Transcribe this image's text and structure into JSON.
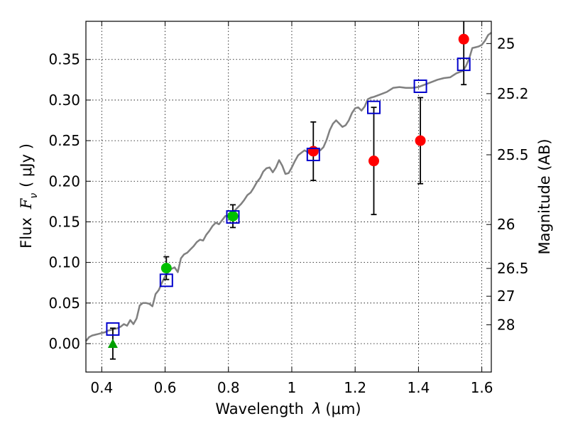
{
  "chart_data": {
    "type": "scatter",
    "xlabel_prefix": "Wavelength",
    "xlabel_symbol": "λ",
    "xlabel_unit": "(μm)",
    "ylabel_prefix": "Flux",
    "ylabel_symbol": "F",
    "ylabel_subscript": "ν",
    "ylabel_unit": "( μJy )",
    "y2label": "Magnitude (AB)",
    "xlim": [
      0.35,
      1.63
    ],
    "ylim": [
      -0.035,
      0.397
    ],
    "grid": true,
    "x_ticks": [
      {
        "value": 0.4,
        "label": "0.4"
      },
      {
        "value": 0.6,
        "label": "0.6"
      },
      {
        "value": 0.8,
        "label": "0.8"
      },
      {
        "value": 1.0,
        "label": "1"
      },
      {
        "value": 1.2,
        "label": "1.2"
      },
      {
        "value": 1.4,
        "label": "1.4"
      },
      {
        "value": 1.6,
        "label": "1.6"
      }
    ],
    "y_ticks": [
      {
        "value": 0.0,
        "label": "0.00"
      },
      {
        "value": 0.05,
        "label": "0.05"
      },
      {
        "value": 0.1,
        "label": "0.10"
      },
      {
        "value": 0.15,
        "label": "0.15"
      },
      {
        "value": 0.2,
        "label": "0.20"
      },
      {
        "value": 0.25,
        "label": "0.25"
      },
      {
        "value": 0.3,
        "label": "0.30"
      },
      {
        "value": 0.35,
        "label": "0.35"
      }
    ],
    "y2_ticks": [
      {
        "flux": 0.3696,
        "label": "25"
      },
      {
        "flux": 0.3079,
        "label": "25.2"
      },
      {
        "flux": 0.2326,
        "label": "25.5"
      },
      {
        "flux": 0.1467,
        "label": "26"
      },
      {
        "flux": 0.0926,
        "label": "26.5"
      },
      {
        "flux": 0.0584,
        "label": "27"
      },
      {
        "flux": 0.0232,
        "label": "28"
      }
    ],
    "model_spectrum": {
      "color": "#808080",
      "points": [
        [
          0.35,
          0.003
        ],
        [
          0.36,
          0.008
        ],
        [
          0.37,
          0.01
        ],
        [
          0.38,
          0.011
        ],
        [
          0.39,
          0.012
        ],
        [
          0.4,
          0.013
        ],
        [
          0.41,
          0.014
        ],
        [
          0.42,
          0.016
        ],
        [
          0.43,
          0.017
        ],
        [
          0.44,
          0.018
        ],
        [
          0.45,
          0.019
        ],
        [
          0.46,
          0.021
        ],
        [
          0.47,
          0.024
        ],
        [
          0.48,
          0.022
        ],
        [
          0.49,
          0.029
        ],
        [
          0.5,
          0.024
        ],
        [
          0.51,
          0.031
        ],
        [
          0.52,
          0.047
        ],
        [
          0.53,
          0.05
        ],
        [
          0.54,
          0.05
        ],
        [
          0.55,
          0.049
        ],
        [
          0.56,
          0.046
        ],
        [
          0.57,
          0.061
        ],
        [
          0.58,
          0.066
        ],
        [
          0.59,
          0.075
        ],
        [
          0.6,
          0.083
        ],
        [
          0.61,
          0.088
        ],
        [
          0.62,
          0.092
        ],
        [
          0.63,
          0.094
        ],
        [
          0.64,
          0.088
        ],
        [
          0.65,
          0.105
        ],
        [
          0.66,
          0.11
        ],
        [
          0.67,
          0.112
        ],
        [
          0.68,
          0.116
        ],
        [
          0.69,
          0.12
        ],
        [
          0.7,
          0.125
        ],
        [
          0.71,
          0.128
        ],
        [
          0.72,
          0.127
        ],
        [
          0.73,
          0.134
        ],
        [
          0.74,
          0.139
        ],
        [
          0.75,
          0.145
        ],
        [
          0.76,
          0.149
        ],
        [
          0.77,
          0.147
        ],
        [
          0.78,
          0.152
        ],
        [
          0.79,
          0.157
        ],
        [
          0.8,
          0.158
        ],
        [
          0.81,
          0.16
        ],
        [
          0.82,
          0.164
        ],
        [
          0.83,
          0.168
        ],
        [
          0.84,
          0.172
        ],
        [
          0.85,
          0.177
        ],
        [
          0.86,
          0.183
        ],
        [
          0.87,
          0.186
        ],
        [
          0.88,
          0.192
        ],
        [
          0.89,
          0.199
        ],
        [
          0.9,
          0.204
        ],
        [
          0.91,
          0.212
        ],
        [
          0.92,
          0.216
        ],
        [
          0.93,
          0.217
        ],
        [
          0.94,
          0.211
        ],
        [
          0.95,
          0.217
        ],
        [
          0.96,
          0.226
        ],
        [
          0.97,
          0.219
        ],
        [
          0.98,
          0.209
        ],
        [
          0.99,
          0.21
        ],
        [
          1.0,
          0.217
        ],
        [
          1.01,
          0.225
        ],
        [
          1.02,
          0.232
        ],
        [
          1.03,
          0.235
        ],
        [
          1.04,
          0.238
        ],
        [
          1.05,
          0.236
        ],
        [
          1.06,
          0.233
        ],
        [
          1.07,
          0.236
        ],
        [
          1.08,
          0.239
        ],
        [
          1.09,
          0.238
        ],
        [
          1.1,
          0.242
        ],
        [
          1.11,
          0.251
        ],
        [
          1.12,
          0.263
        ],
        [
          1.13,
          0.271
        ],
        [
          1.14,
          0.275
        ],
        [
          1.15,
          0.271
        ],
        [
          1.16,
          0.267
        ],
        [
          1.17,
          0.269
        ],
        [
          1.18,
          0.275
        ],
        [
          1.19,
          0.284
        ],
        [
          1.2,
          0.29
        ],
        [
          1.21,
          0.291
        ],
        [
          1.22,
          0.287
        ],
        [
          1.23,
          0.292
        ],
        [
          1.24,
          0.301
        ],
        [
          1.25,
          0.303
        ],
        [
          1.26,
          0.304
        ],
        [
          1.28,
          0.307
        ],
        [
          1.3,
          0.31
        ],
        [
          1.32,
          0.315
        ],
        [
          1.34,
          0.316
        ],
        [
          1.36,
          0.315
        ],
        [
          1.38,
          0.315
        ],
        [
          1.4,
          0.316
        ],
        [
          1.42,
          0.319
        ],
        [
          1.44,
          0.322
        ],
        [
          1.46,
          0.325
        ],
        [
          1.48,
          0.327
        ],
        [
          1.5,
          0.328
        ],
        [
          1.52,
          0.333
        ],
        [
          1.54,
          0.336
        ],
        [
          1.55,
          0.342
        ],
        [
          1.56,
          0.351
        ],
        [
          1.57,
          0.364
        ],
        [
          1.58,
          0.365
        ],
        [
          1.59,
          0.366
        ],
        [
          1.6,
          0.368
        ],
        [
          1.61,
          0.373
        ],
        [
          1.62,
          0.38
        ],
        [
          1.63,
          0.383
        ]
      ]
    },
    "series": [
      {
        "marker": "circle",
        "color": "#00c000",
        "points": [
          {
            "x": 0.604,
            "y": 0.093,
            "yerr": 0.014
          },
          {
            "x": 0.814,
            "y": 0.157,
            "yerr": 0.014
          }
        ]
      },
      {
        "marker": "triangle",
        "color": "#00a000",
        "points": [
          {
            "x": 0.435,
            "y": 0.0,
            "yerr": 0.019
          }
        ]
      },
      {
        "marker": "circle",
        "color": "#ff0000",
        "points": [
          {
            "x": 1.068,
            "y": 0.237,
            "yerr": 0.036
          },
          {
            "x": 1.259,
            "y": 0.225,
            "yerr": 0.066
          },
          {
            "x": 1.406,
            "y": 0.25,
            "yerr": 0.053
          },
          {
            "x": 1.543,
            "y": 0.375,
            "yerr": 0.056
          }
        ]
      },
      {
        "marker": "open-square",
        "color": "#0000cc",
        "points": [
          {
            "x": 0.435,
            "y": 0.018
          },
          {
            "x": 0.604,
            "y": 0.078
          },
          {
            "x": 0.814,
            "y": 0.156
          },
          {
            "x": 1.068,
            "y": 0.233
          },
          {
            "x": 1.259,
            "y": 0.291
          },
          {
            "x": 1.406,
            "y": 0.317
          },
          {
            "x": 1.543,
            "y": 0.344
          }
        ]
      }
    ]
  }
}
